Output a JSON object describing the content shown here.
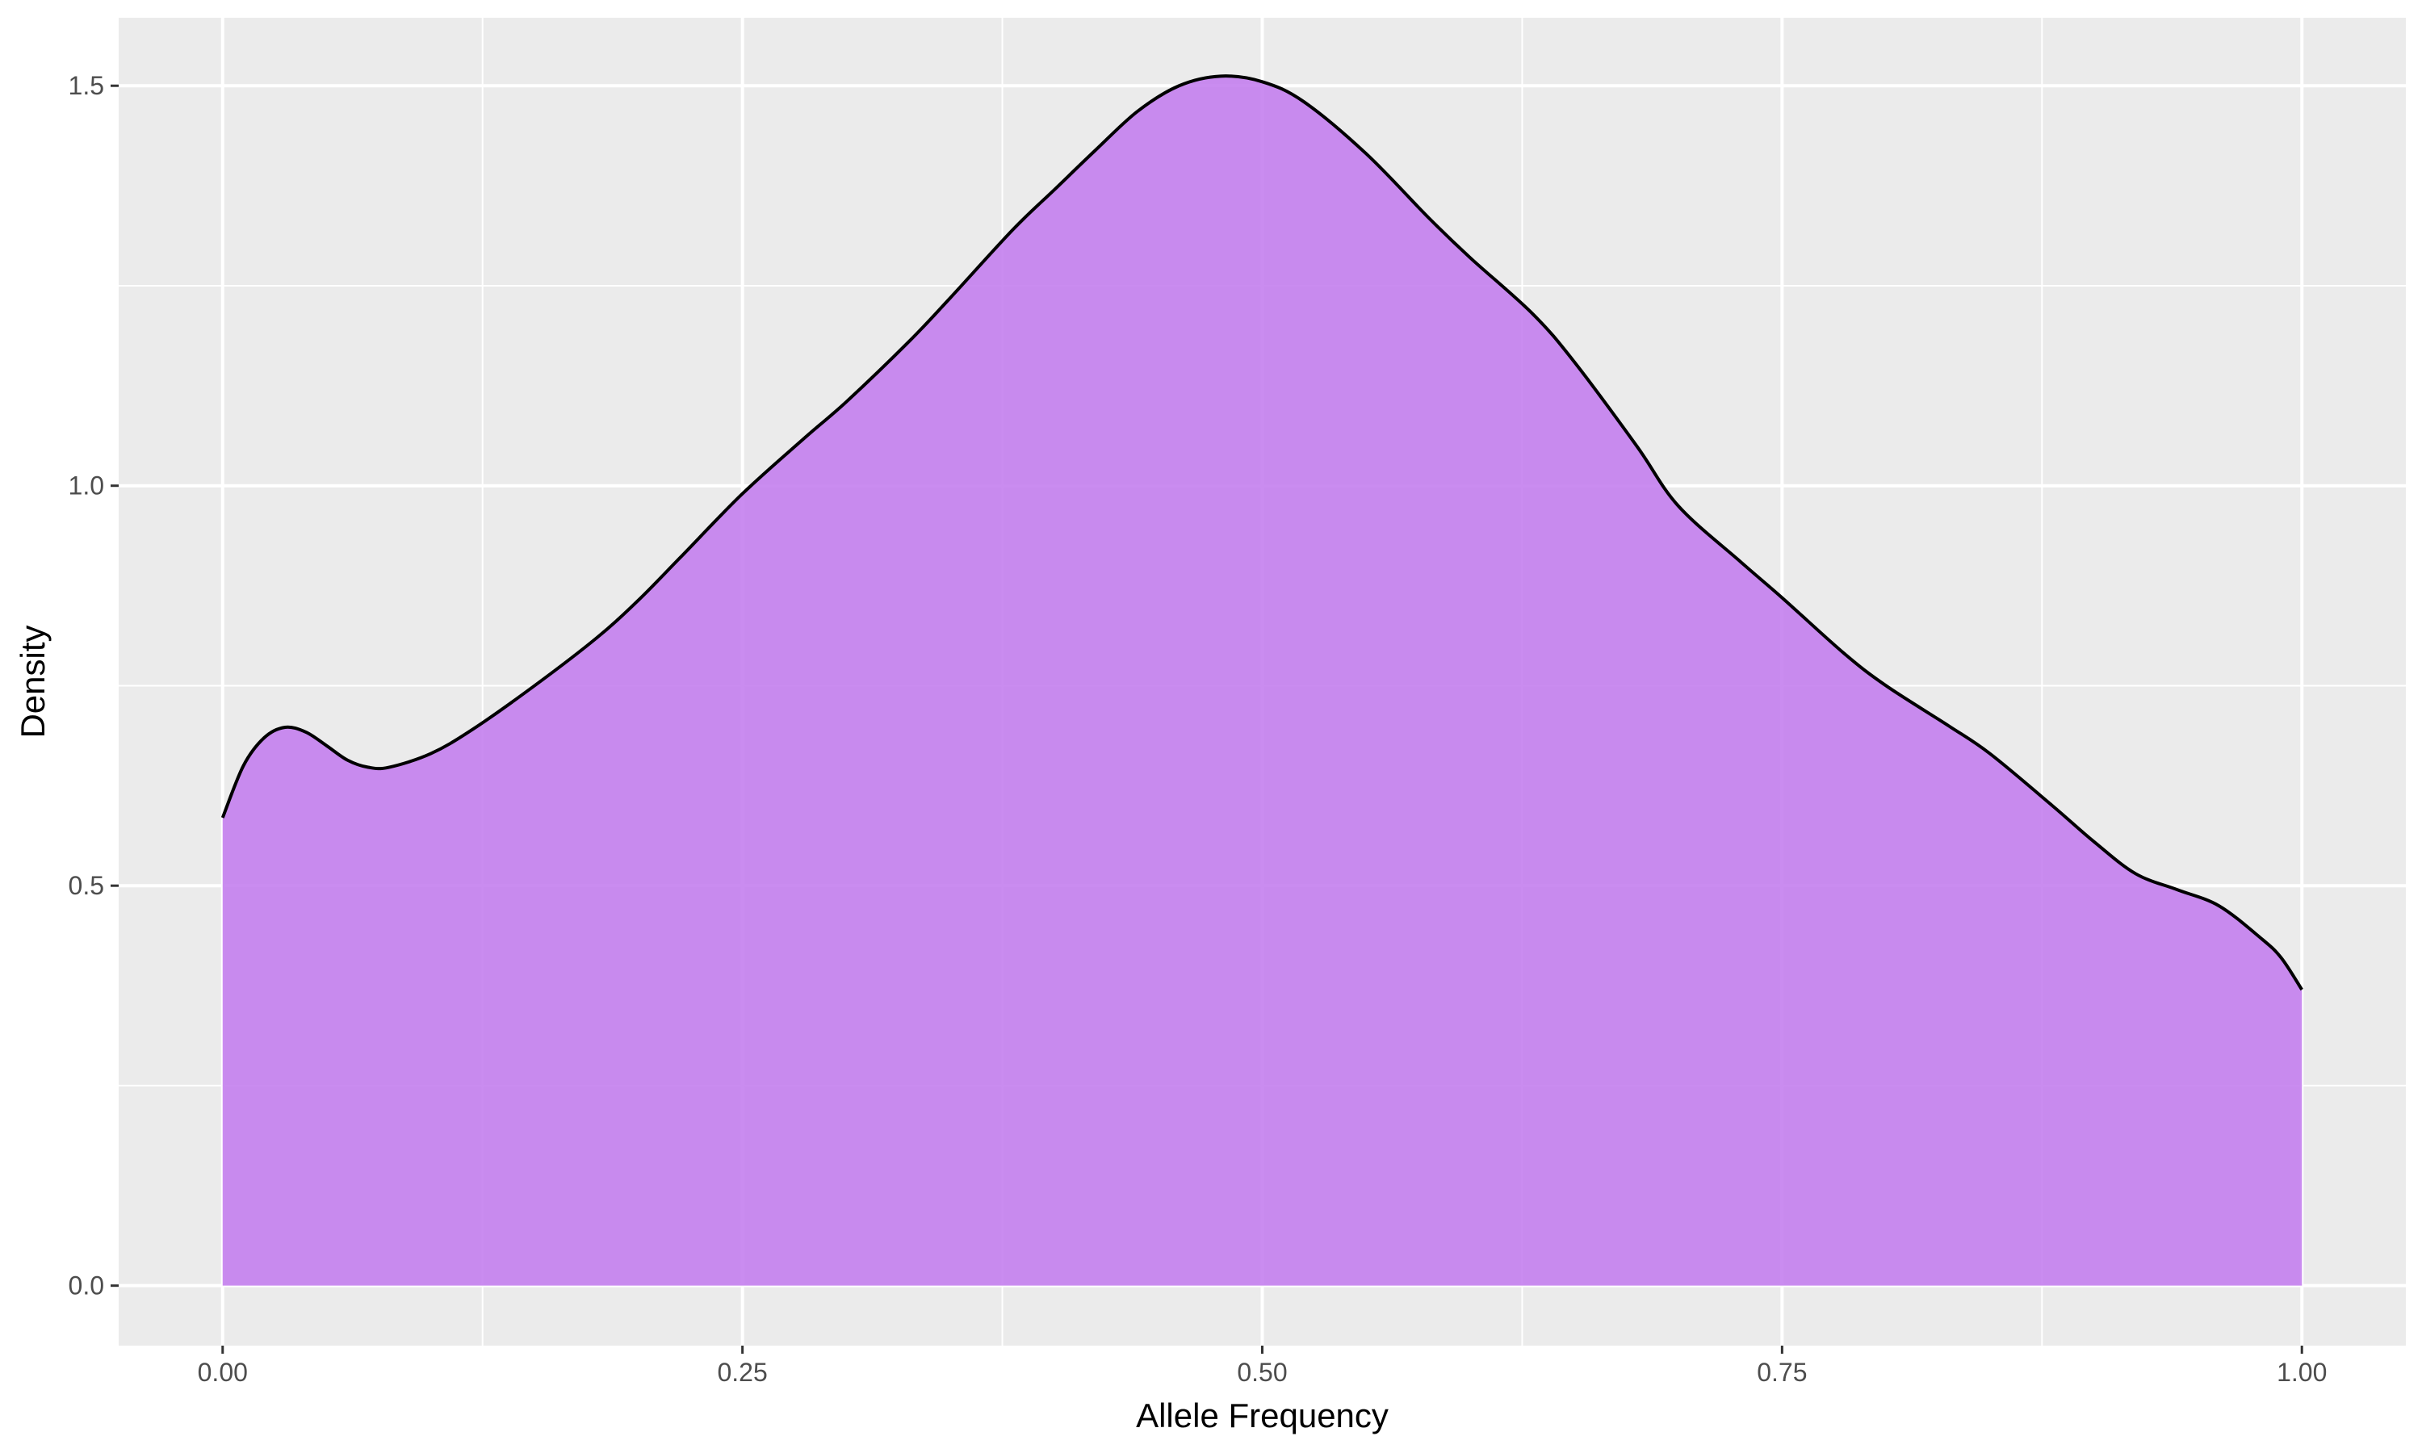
{
  "chart_data": {
    "type": "area",
    "xlabel": "Allele Frequency",
    "ylabel": "Density",
    "xlim": [
      -0.05,
      1.05
    ],
    "ylim": [
      -0.075,
      1.585
    ],
    "x_ticks": [
      0.0,
      0.25,
      0.5,
      0.75,
      1.0
    ],
    "x_tick_labels": [
      "0.00",
      "0.25",
      "0.50",
      "0.75",
      "1.00"
    ],
    "y_ticks": [
      0.0,
      0.5,
      1.0,
      1.5
    ],
    "y_tick_labels": [
      "0.0",
      "0.5",
      "1.0",
      "1.5"
    ],
    "grid": true,
    "legend": "none",
    "series": [
      {
        "x": [
          0.0,
          0.01,
          0.02,
          0.03,
          0.04,
          0.05,
          0.06,
          0.07,
          0.08,
          0.1,
          0.12,
          0.15,
          0.18,
          0.2,
          0.22,
          0.25,
          0.28,
          0.3,
          0.33,
          0.35,
          0.38,
          0.4,
          0.42,
          0.44,
          0.46,
          0.48,
          0.5,
          0.52,
          0.55,
          0.58,
          0.6,
          0.63,
          0.65,
          0.68,
          0.7,
          0.73,
          0.75,
          0.78,
          0.8,
          0.83,
          0.85,
          0.88,
          0.9,
          0.92,
          0.94,
          0.96,
          0.98,
          0.99,
          1.0
        ],
        "y": [
          0.585,
          0.65,
          0.685,
          0.698,
          0.692,
          0.675,
          0.657,
          0.648,
          0.648,
          0.665,
          0.695,
          0.75,
          0.81,
          0.857,
          0.91,
          0.99,
          1.06,
          1.105,
          1.18,
          1.235,
          1.32,
          1.37,
          1.42,
          1.468,
          1.5,
          1.512,
          1.505,
          1.48,
          1.415,
          1.335,
          1.285,
          1.215,
          1.155,
          1.05,
          0.975,
          0.905,
          0.86,
          0.79,
          0.75,
          0.7,
          0.665,
          0.6,
          0.555,
          0.515,
          0.495,
          0.475,
          0.435,
          0.41,
          0.37
        ],
        "fill": "#c47fee",
        "line": "#000000"
      }
    ]
  },
  "colors": {
    "panel_background": "#ebebeb",
    "grid": "#ffffff",
    "fill": "#c47fee",
    "line": "#000000"
  }
}
